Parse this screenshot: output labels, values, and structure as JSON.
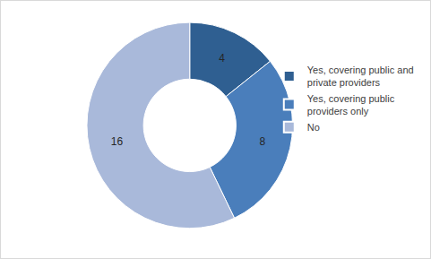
{
  "chart_data": {
    "type": "pie",
    "categories": [
      "Yes, covering public and private providers",
      "Yes, covering public providers only",
      "No"
    ],
    "values": [
      4,
      8,
      16
    ],
    "colors": [
      "#2F5F91",
      "#4A7EBB",
      "#A9B9DA"
    ],
    "data_labels": true,
    "legend": "right"
  }
}
